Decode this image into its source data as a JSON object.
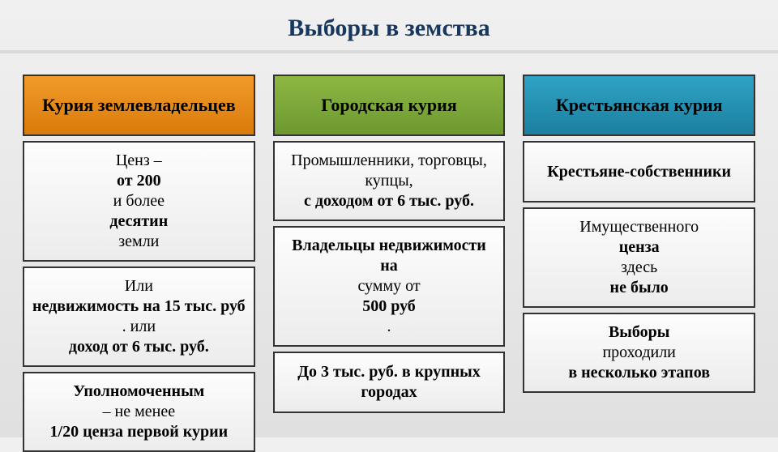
{
  "title": "Выборы в земства",
  "title_color": "#17375e",
  "columns": [
    {
      "header": "Курия землевладельцев",
      "header_bg_top": "#f29b2a",
      "header_bg_bottom": "#d97a0b",
      "cells": [
        "Ценз – <b>от 200</b> и более <b>десятин</b> земли",
        "Или <b>недвижимость на 15 тыс. руб</b>. или <b>доход от 6 тыс. руб.</b>",
        "<b>Уполномоченным</b> – не менее <b>1/20 ценза первой курии</b>"
      ]
    },
    {
      "header": "Городская курия",
      "header_bg_top": "#8db843",
      "header_bg_bottom": "#6d9830",
      "cells": [
        "Промышленники, торговцы, купцы, <b>с доходом от 6 тыс. руб.</b>",
        "<b>Владельцы недвижимости на</b> сумму от <b>500 руб</b>.",
        "<b>До 3 тыс. руб. в крупных городах</b>"
      ]
    },
    {
      "header": "Крестьянская курия",
      "header_bg_top": "#2fa3c4",
      "header_bg_bottom": "#1b7fa0",
      "cells": [
        "<b>Крестьяне-собственники</b>",
        "Имущественного <b>ценза</b> здесь <b>не было</b>",
        "<b>Выборы</b> проходили <b>в несколько этапов</b>"
      ]
    }
  ]
}
